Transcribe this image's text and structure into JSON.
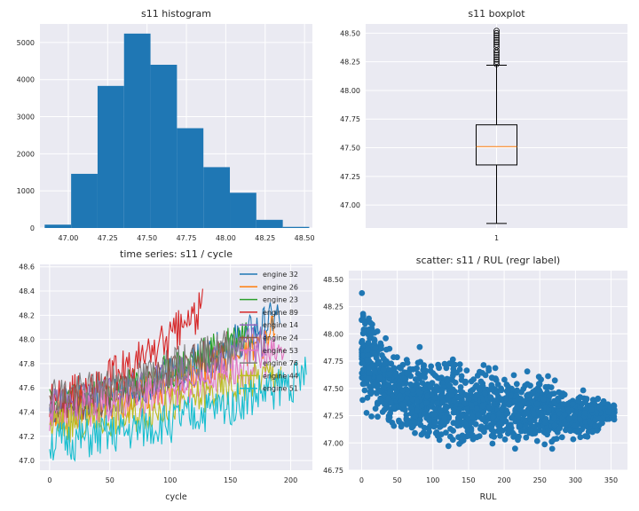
{
  "chart_data": [
    {
      "type": "bar",
      "title": "s11 histogram",
      "xlabel": "",
      "ylabel": "",
      "xlim": [
        46.82,
        48.55
      ],
      "ylim": [
        0,
        5500
      ],
      "xticks": [
        47.0,
        47.25,
        47.5,
        47.75,
        48.0,
        48.25,
        48.5
      ],
      "yticks": [
        0,
        1000,
        2000,
        3000,
        4000,
        5000
      ],
      "bins": [
        {
          "x0": 46.85,
          "x1": 47.018,
          "count": 90
        },
        {
          "x0": 47.018,
          "x1": 47.186,
          "count": 1460
        },
        {
          "x0": 47.186,
          "x1": 47.354,
          "count": 3830
        },
        {
          "x0": 47.354,
          "x1": 47.522,
          "count": 5240
        },
        {
          "x0": 47.522,
          "x1": 47.69,
          "count": 4400
        },
        {
          "x0": 47.69,
          "x1": 47.858,
          "count": 2690
        },
        {
          "x0": 47.858,
          "x1": 48.026,
          "count": 1640
        },
        {
          "x0": 48.026,
          "x1": 48.194,
          "count": 950
        },
        {
          "x0": 48.194,
          "x1": 48.362,
          "count": 220
        },
        {
          "x0": 48.362,
          "x1": 48.53,
          "count": 30
        }
      ],
      "color": "#1f77b4"
    },
    {
      "type": "box",
      "title": "s11 boxplot",
      "xticks": [
        "1"
      ],
      "ylim": [
        46.8,
        48.58
      ],
      "yticks": [
        47.0,
        47.25,
        47.5,
        47.75,
        48.0,
        48.25,
        48.5
      ],
      "whisker_low": 46.84,
      "q1": 47.35,
      "median": 47.51,
      "q3": 47.7,
      "whisker_high": 48.22,
      "fliers": [
        48.23,
        48.25,
        48.27,
        48.29,
        48.31,
        48.33,
        48.35,
        48.38,
        48.4,
        48.42,
        48.44,
        48.46,
        48.48,
        48.5,
        48.52
      ],
      "median_color": "#ff7f0e"
    },
    {
      "type": "line",
      "title": "time series: s11 / cycle",
      "xlabel": "cycle",
      "ylabel": "",
      "xlim": [
        -8,
        218
      ],
      "ylim": [
        46.92,
        48.62
      ],
      "xticks": [
        0,
        50,
        100,
        150,
        200
      ],
      "yticks": [
        47.0,
        47.2,
        47.4,
        47.6,
        47.8,
        48.0,
        48.2,
        48.4,
        48.6
      ],
      "legend_position": "top-right",
      "series": [
        {
          "name": "engine 32",
          "color": "#1f77b4",
          "length": 191,
          "start": 47.45,
          "end": 48.2,
          "noise": 0.1,
          "seed": 32
        },
        {
          "name": "engine 26",
          "color": "#ff7f0e",
          "length": 187,
          "start": 47.4,
          "end": 48.05,
          "noise": 0.1,
          "seed": 26
        },
        {
          "name": "engine 23",
          "color": "#2ca02c",
          "length": 168,
          "start": 47.45,
          "end": 48.1,
          "noise": 0.1,
          "seed": 23
        },
        {
          "name": "engine 89",
          "color": "#d62728",
          "length": 127,
          "start": 47.5,
          "end": 48.25,
          "noise": 0.11,
          "seed": 89
        },
        {
          "name": "engine 14",
          "color": "#9467bd",
          "length": 180,
          "start": 47.45,
          "end": 48.0,
          "noise": 0.1,
          "seed": 14
        },
        {
          "name": "engine 24",
          "color": "#8c564b",
          "length": 147,
          "start": 47.45,
          "end": 47.95,
          "noise": 0.1,
          "seed": 24
        },
        {
          "name": "engine 53",
          "color": "#e377c2",
          "length": 195,
          "start": 47.4,
          "end": 47.9,
          "noise": 0.1,
          "seed": 53
        },
        {
          "name": "engine 76",
          "color": "#7f7f7f",
          "length": 160,
          "start": 47.55,
          "end": 48.0,
          "noise": 0.1,
          "seed": 76
        },
        {
          "name": "engine 44",
          "color": "#bcbd22",
          "length": 192,
          "start": 47.3,
          "end": 47.75,
          "noise": 0.1,
          "seed": 44
        },
        {
          "name": "engine 51",
          "color": "#17becf",
          "length": 213,
          "start": 47.15,
          "end": 47.7,
          "noise": 0.11,
          "seed": 51
        }
      ]
    },
    {
      "type": "scatter",
      "title": "scatter: s11 / RUL (regr label)",
      "xlabel": "RUL",
      "ylabel": "",
      "xlim": [
        -18,
        373
      ],
      "ylim": [
        46.75,
        48.58
      ],
      "xticks": [
        0,
        50,
        100,
        150,
        200,
        250,
        300,
        350
      ],
      "yticks": [
        46.75,
        47.0,
        47.25,
        47.5,
        47.75,
        48.0,
        48.25,
        48.5
      ],
      "color": "#1f77b4",
      "envelope": [
        {
          "rul": 0,
          "low": 47.18,
          "high": 48.52
        },
        {
          "rul": 25,
          "low": 47.08,
          "high": 48.15
        },
        {
          "rul": 50,
          "low": 47.02,
          "high": 47.98
        },
        {
          "rul": 100,
          "low": 46.92,
          "high": 47.88
        },
        {
          "rul": 150,
          "low": 46.87,
          "high": 47.82
        },
        {
          "rul": 200,
          "low": 46.88,
          "high": 47.78
        },
        {
          "rul": 250,
          "low": 46.9,
          "high": 47.72
        },
        {
          "rul": 300,
          "low": 46.98,
          "high": 47.52
        },
        {
          "rul": 330,
          "low": 47.05,
          "high": 47.45
        },
        {
          "rul": 355,
          "low": 47.2,
          "high": 47.4
        }
      ],
      "point_count": 1400
    }
  ]
}
